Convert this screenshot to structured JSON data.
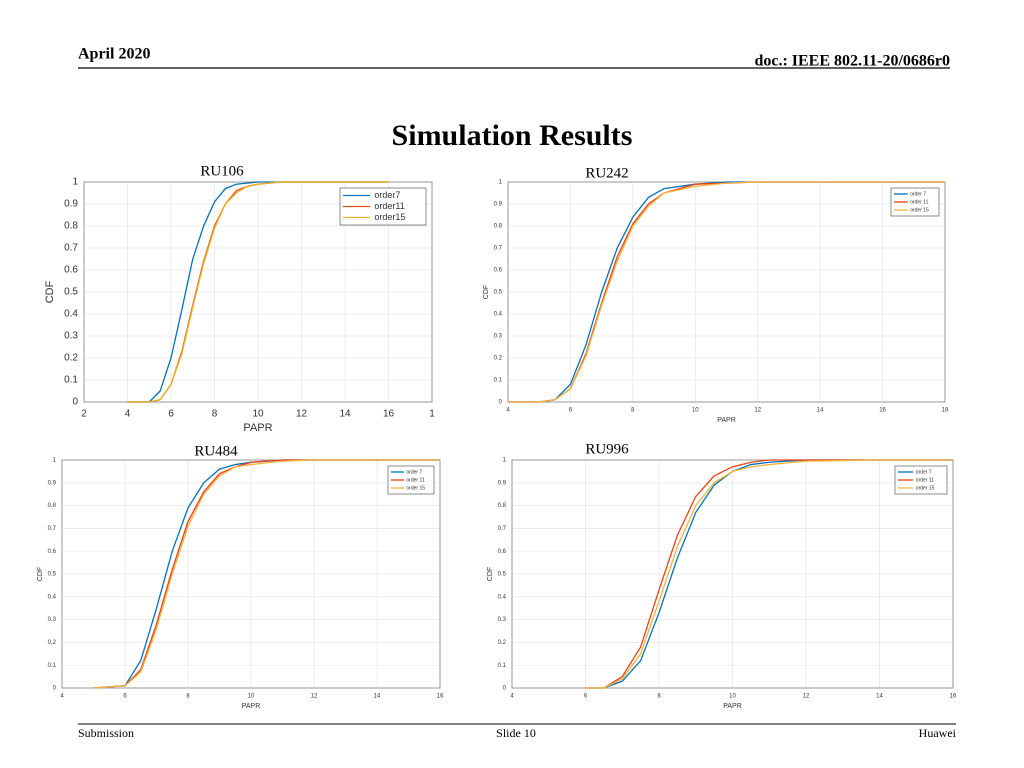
{
  "header": {
    "date": "April 2020",
    "doc": "doc.: IEEE 802.11-20/0686r0"
  },
  "title": "Simulation Results",
  "footer": {
    "left": "Submission",
    "center": "Slide 10",
    "right": "Huawei"
  },
  "chart_data": [
    {
      "type": "line",
      "title": "RU106",
      "x_label": "PAPR",
      "y_label": "CDF",
      "x": [
        4,
        5,
        5.5,
        6,
        6.5,
        7,
        7.5,
        8,
        8.5,
        9,
        9.5,
        10,
        11,
        12,
        14,
        16
      ],
      "series": [
        {
          "name": "order7",
          "color": "#0072bd",
          "values": [
            0,
            0,
            0.05,
            0.2,
            0.42,
            0.65,
            0.8,
            0.91,
            0.97,
            0.99,
            0.995,
            1,
            1,
            1,
            1,
            1
          ]
        },
        {
          "name": "order11",
          "color": "#d95319",
          "values": [
            0,
            0,
            0.01,
            0.08,
            0.23,
            0.44,
            0.64,
            0.8,
            0.9,
            0.96,
            0.98,
            0.99,
            1,
            1,
            1,
            1
          ]
        },
        {
          "name": "order15",
          "color": "#edb120",
          "values": [
            0,
            0,
            0.01,
            0.08,
            0.22,
            0.43,
            0.63,
            0.79,
            0.9,
            0.95,
            0.98,
            0.99,
            1,
            1,
            1,
            1
          ]
        }
      ],
      "xlim": [
        2,
        18
      ],
      "xticks": [
        2,
        4,
        6,
        8,
        10,
        12,
        14,
        16,
        {
          "value": 18,
          "label": "1"
        }
      ],
      "ylim": [
        0,
        1
      ],
      "yticks": [
        0,
        0.1,
        0.2,
        0.3,
        0.4,
        0.5,
        0.6,
        0.7,
        0.8,
        0.9,
        1
      ],
      "grid": true,
      "legend": "upper right"
    },
    {
      "type": "line",
      "title": "RU242",
      "x_label": "PAPR",
      "y_label": "CDF",
      "x": [
        4,
        5,
        5.5,
        6,
        6.5,
        7,
        7.5,
        8,
        8.5,
        9,
        10,
        11,
        12,
        14,
        16,
        18
      ],
      "series": [
        {
          "name": "order 7",
          "color": "#0072bd",
          "values": [
            0,
            0,
            0.01,
            0.08,
            0.26,
            0.5,
            0.7,
            0.84,
            0.93,
            0.97,
            0.99,
            1,
            1,
            1,
            1,
            1
          ]
        },
        {
          "name": "order 11",
          "color": "#e8401c",
          "values": [
            0,
            0,
            0.01,
            0.06,
            0.22,
            0.45,
            0.66,
            0.81,
            0.9,
            0.95,
            0.99,
            0.995,
            1,
            1,
            1,
            1
          ]
        },
        {
          "name": "order 15",
          "color": "#f4b33a",
          "values": [
            0,
            0,
            0.01,
            0.06,
            0.21,
            0.44,
            0.64,
            0.8,
            0.89,
            0.95,
            0.98,
            0.995,
            1,
            1,
            1,
            1
          ]
        }
      ],
      "xlim": [
        4,
        18
      ],
      "xticks": [
        4,
        6,
        8,
        10,
        12,
        14,
        16,
        18
      ],
      "ylim": [
        0,
        1
      ],
      "yticks": [
        0,
        0.1,
        0.2,
        0.3,
        0.4,
        0.5,
        0.6,
        0.7,
        0.8,
        0.9,
        1
      ],
      "grid": true,
      "legend": "upper right"
    },
    {
      "type": "line",
      "title": "RU484",
      "x_label": "PAPR",
      "y_label": "CDF",
      "x": [
        5,
        6,
        6.5,
        7,
        7.5,
        8,
        8.5,
        9,
        9.5,
        10,
        11,
        12,
        14,
        16
      ],
      "series": [
        {
          "name": "order 7",
          "color": "#0072bd",
          "values": [
            0,
            0.01,
            0.12,
            0.35,
            0.6,
            0.79,
            0.9,
            0.96,
            0.98,
            0.99,
            1,
            1,
            1,
            1
          ]
        },
        {
          "name": "order 11",
          "color": "#e8401c",
          "values": [
            0,
            0.01,
            0.08,
            0.28,
            0.52,
            0.73,
            0.86,
            0.94,
            0.97,
            0.99,
            1,
            1,
            1,
            1
          ]
        },
        {
          "name": "order 15",
          "color": "#f4b33a",
          "values": [
            0,
            0.01,
            0.07,
            0.26,
            0.5,
            0.71,
            0.85,
            0.93,
            0.97,
            0.98,
            0.995,
            1,
            1,
            1
          ]
        }
      ],
      "xlim": [
        4,
        16
      ],
      "xticks": [
        4,
        6,
        8,
        10,
        12,
        14,
        16
      ],
      "ylim": [
        0,
        1
      ],
      "yticks": [
        0,
        0.1,
        0.2,
        0.3,
        0.4,
        0.5,
        0.6,
        0.7,
        0.8,
        0.9,
        1
      ],
      "grid": true,
      "legend": "upper right"
    },
    {
      "type": "line",
      "title": "RU996",
      "x_label": "PAPR",
      "y_label": "CDF",
      "x": [
        6,
        6.5,
        7,
        7.5,
        8,
        8.5,
        9,
        9.5,
        10,
        10.5,
        11,
        12,
        14,
        16
      ],
      "series": [
        {
          "name": "order 7",
          "color": "#0072bd",
          "values": [
            0,
            0,
            0.03,
            0.12,
            0.33,
            0.57,
            0.77,
            0.89,
            0.95,
            0.98,
            0.99,
            1,
            1,
            1
          ]
        },
        {
          "name": "order 11",
          "color": "#e8401c",
          "values": [
            0,
            0,
            0.05,
            0.18,
            0.43,
            0.67,
            0.84,
            0.93,
            0.97,
            0.99,
            1,
            1,
            1,
            1
          ]
        },
        {
          "name": "order 15",
          "color": "#f4b33a",
          "values": [
            0,
            0,
            0.04,
            0.15,
            0.38,
            0.62,
            0.8,
            0.9,
            0.95,
            0.97,
            0.98,
            0.995,
            1,
            1
          ]
        }
      ],
      "xlim": [
        4,
        16
      ],
      "xticks": [
        4,
        6,
        8,
        10,
        12,
        14,
        16
      ],
      "ylim": [
        0,
        1
      ],
      "yticks": [
        0,
        0.1,
        0.2,
        0.3,
        0.4,
        0.5,
        0.6,
        0.7,
        0.8,
        0.9,
        1
      ],
      "grid": true,
      "legend": "upper right"
    }
  ]
}
